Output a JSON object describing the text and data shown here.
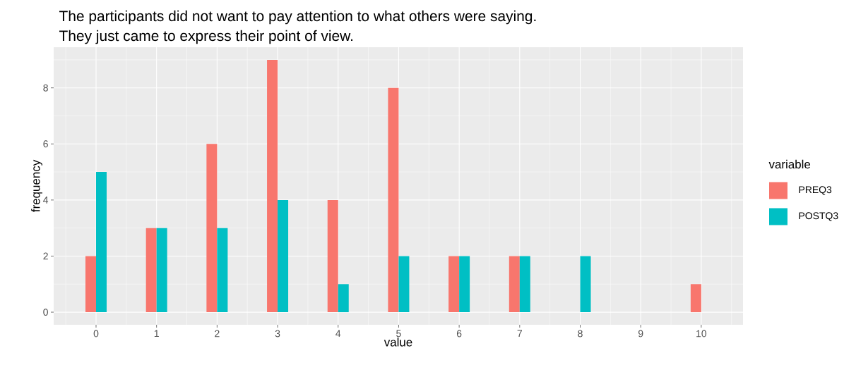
{
  "chart_data": {
    "type": "bar",
    "title": "The participants did not want to pay attention to what others were saying.",
    "subtitle": "They just came to express their point of view.",
    "xlabel": "value",
    "ylabel": "frequency",
    "legend_title": "variable",
    "categories": [
      "0",
      "1",
      "2",
      "3",
      "4",
      "5",
      "6",
      "7",
      "8",
      "9",
      "10"
    ],
    "series": [
      {
        "name": "PREQ3",
        "color": "#f8766d",
        "values": [
          2,
          3,
          6,
          9,
          4,
          8,
          2,
          2,
          null,
          null,
          1
        ]
      },
      {
        "name": "POSTQ3",
        "color": "#00bfc4",
        "values": [
          5,
          3,
          3,
          4,
          1,
          2,
          2,
          2,
          2,
          null,
          null
        ]
      }
    ],
    "ylim": [
      -0.45,
      9.45
    ],
    "yticks": [
      0,
      2,
      4,
      6,
      8
    ],
    "grid": true,
    "legend": "right"
  }
}
